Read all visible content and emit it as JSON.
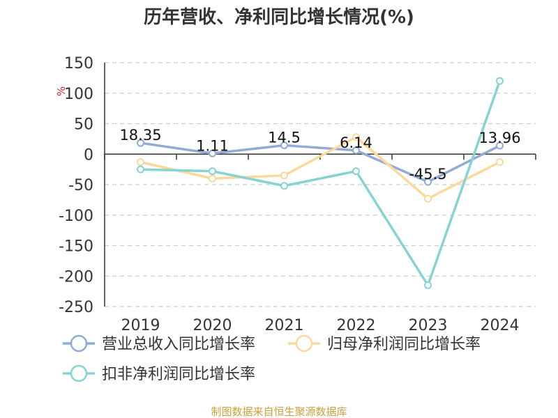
{
  "chart_data": {
    "type": "line",
    "title": "历年营收、净利同比增长情况(%)",
    "unit_label": "%",
    "categories": [
      "2019",
      "2020",
      "2021",
      "2022",
      "2023",
      "2024"
    ],
    "ylim": [
      -250,
      150
    ],
    "yticks": [
      150,
      100,
      50,
      0,
      -50,
      -100,
      -150,
      -200,
      -250
    ],
    "ytick_labels": [
      "150",
      "100",
      "50",
      "0",
      "-50",
      "-100",
      "-150",
      "-200",
      "-250"
    ],
    "grid": true,
    "legend_position": "bottom",
    "series": [
      {
        "name": "营业总收入同比增长率",
        "color": "#8fabd6",
        "values": [
          18.35,
          1.11,
          14.5,
          6.14,
          -45.5,
          13.96
        ],
        "data_labels": [
          "18.35",
          "1.11",
          "14.5",
          "6.14",
          "-45.5",
          "13.96"
        ]
      },
      {
        "name": "归母净利润同比增长率",
        "color": "#fcd99a",
        "values": [
          -13,
          -40,
          -35,
          28,
          -73,
          -13
        ],
        "data_labels": []
      },
      {
        "name": "扣非净利润同比增长率",
        "color": "#86d3d4",
        "values": [
          -25,
          -28,
          -52,
          -28,
          -215,
          120
        ],
        "data_labels": []
      }
    ]
  },
  "source_text": "制图数据来自恒生聚源数据库"
}
